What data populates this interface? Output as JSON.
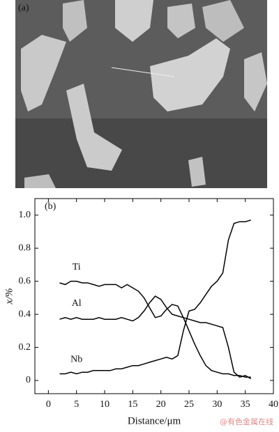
{
  "panel_a": {
    "label": "(a)"
  },
  "chart_data": {
    "type": "line",
    "panel_label": "(b)",
    "x_label": "Distance/μm",
    "y_label": "x/%",
    "x": [
      2,
      3,
      4,
      5,
      6,
      7,
      8,
      9,
      10,
      11,
      12,
      13,
      14,
      15,
      16,
      17,
      18,
      19,
      20,
      21,
      22,
      23,
      24,
      25,
      26,
      27,
      28,
      29,
      30,
      31,
      32,
      33,
      34,
      35,
      36
    ],
    "series": [
      {
        "name": "Ti",
        "color": "#000000",
        "values": [
          0.59,
          0.58,
          0.6,
          0.6,
          0.59,
          0.59,
          0.58,
          0.57,
          0.58,
          0.58,
          0.58,
          0.56,
          0.58,
          0.56,
          0.54,
          0.5,
          0.44,
          0.38,
          0.39,
          0.43,
          0.46,
          0.45,
          0.38,
          0.3,
          0.22,
          0.15,
          0.09,
          0.06,
          0.05,
          0.04,
          0.04,
          0.03,
          0.03,
          0.02,
          0.02
        ]
      },
      {
        "name": "Al",
        "color": "#000000",
        "values": [
          0.37,
          0.38,
          0.37,
          0.38,
          0.37,
          0.37,
          0.37,
          0.38,
          0.37,
          0.37,
          0.37,
          0.38,
          0.37,
          0.36,
          0.38,
          0.42,
          0.47,
          0.51,
          0.49,
          0.44,
          0.4,
          0.39,
          0.38,
          0.37,
          0.36,
          0.35,
          0.35,
          0.34,
          0.33,
          0.32,
          0.2,
          0.05,
          0.02,
          0.03,
          0.01
        ]
      },
      {
        "name": "Nb",
        "color": "#000000",
        "values": [
          0.04,
          0.04,
          0.05,
          0.04,
          0.05,
          0.05,
          0.06,
          0.06,
          0.06,
          0.06,
          0.07,
          0.07,
          0.08,
          0.09,
          0.09,
          0.1,
          0.11,
          0.12,
          0.13,
          0.14,
          0.13,
          0.15,
          0.3,
          0.42,
          0.43,
          0.47,
          0.52,
          0.57,
          0.6,
          0.65,
          0.85,
          0.95,
          0.96,
          0.96,
          0.97
        ]
      }
    ],
    "xlim": [
      -2.4,
      40
    ],
    "xticks": [
      0,
      5,
      10,
      15,
      20,
      25,
      30,
      35,
      40
    ],
    "ylim": [
      -0.08,
      1.1
    ],
    "yticks": [
      0,
      0.2,
      0.4,
      0.6,
      0.8,
      {
        "value": 1,
        "label": "1.0"
      }
    ]
  },
  "watermark": "@有色金属在线"
}
